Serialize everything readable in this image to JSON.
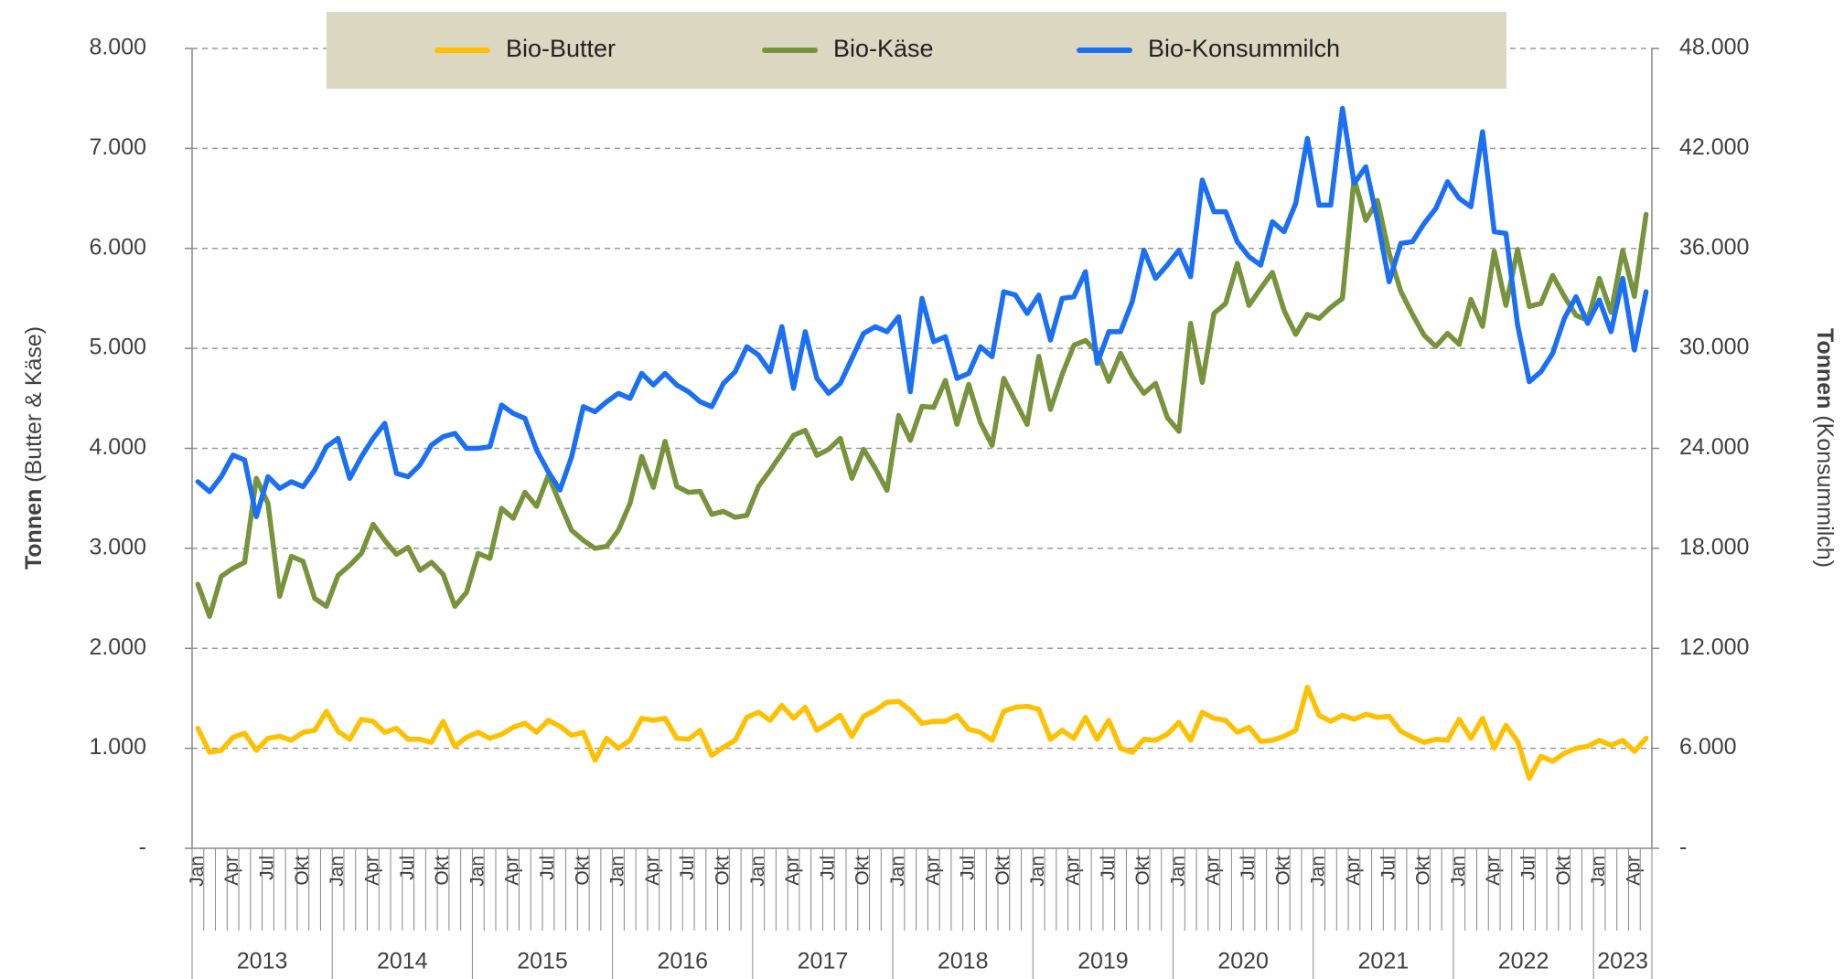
{
  "chart_data": {
    "type": "line",
    "y_label": {
      "bold": "Tonnen",
      "rest": "(Butter & Käse)"
    },
    "y2_label": {
      "bold": "Tonnen",
      "rest": "(Konsummilch)"
    },
    "categories": [
      "Jan",
      null,
      null,
      "Apr",
      null,
      null,
      "Jul",
      null,
      null,
      "Okt",
      null,
      null,
      "Jan",
      null,
      null,
      "Apr",
      null,
      null,
      "Jul",
      null,
      null,
      "Okt",
      null,
      null,
      "Jan",
      null,
      null,
      "Apr",
      null,
      null,
      "Jul",
      null,
      null,
      "Okt",
      null,
      null,
      "Jan",
      null,
      null,
      "Apr",
      null,
      null,
      "Jul",
      null,
      null,
      "Okt",
      null,
      null,
      "Jan",
      null,
      null,
      "Apr",
      null,
      null,
      "Jul",
      null,
      null,
      "Okt",
      null,
      null,
      "Jan",
      null,
      null,
      "Apr",
      null,
      null,
      "Jul",
      null,
      null,
      "Okt",
      null,
      null,
      "Jan",
      null,
      null,
      "Apr",
      null,
      null,
      "Jul",
      null,
      null,
      "Okt",
      null,
      null,
      "Jan",
      null,
      null,
      "Apr",
      null,
      null,
      "Jul",
      null,
      null,
      "Okt",
      null,
      null,
      "Jan",
      null,
      null,
      "Apr",
      null,
      null,
      "Jul",
      null,
      null,
      "Okt",
      null,
      null,
      "Jan",
      null,
      null,
      "Apr",
      null,
      null,
      "Jul",
      null,
      null,
      "Okt",
      null,
      null,
      "Jan",
      null,
      null,
      "Apr",
      null
    ],
    "years": [
      "2013",
      "2014",
      "2015",
      "2016",
      "2017",
      "2018",
      "2019",
      "2020",
      "2021",
      "2022",
      "2023"
    ],
    "series": [
      {
        "name": "Bio-Butter",
        "color": "#ffc000",
        "axis": "y",
        "values": [
          1200,
          960,
          980,
          1110,
          1150,
          980,
          1100,
          1120,
          1080,
          1160,
          1180,
          1370,
          1170,
          1090,
          1290,
          1270,
          1160,
          1200,
          1090,
          1090,
          1060,
          1270,
          1020,
          1110,
          1160,
          1100,
          1140,
          1210,
          1250,
          1160,
          1280,
          1220,
          1130,
          1160,
          880,
          1100,
          1000,
          1080,
          1300,
          1280,
          1300,
          1100,
          1090,
          1180,
          930,
          1010,
          1080,
          1310,
          1360,
          1280,
          1430,
          1300,
          1410,
          1180,
          1250,
          1330,
          1120,
          1320,
          1380,
          1460,
          1470,
          1380,
          1250,
          1270,
          1270,
          1330,
          1190,
          1160,
          1080,
          1370,
          1410,
          1420,
          1390,
          1090,
          1180,
          1100,
          1310,
          1090,
          1280,
          1000,
          960,
          1090,
          1080,
          1140,
          1260,
          1080,
          1360,
          1300,
          1280,
          1160,
          1210,
          1070,
          1080,
          1120,
          1180,
          1610,
          1330,
          1270,
          1330,
          1290,
          1340,
          1310,
          1320,
          1170,
          1110,
          1060,
          1090,
          1080,
          1290,
          1100,
          1300,
          1000,
          1230,
          1070,
          700,
          920,
          870,
          950,
          1000,
          1020,
          1080,
          1030,
          1080,
          970,
          1100
        ]
      },
      {
        "name": "Bio-Käse",
        "color": "#77933c",
        "axis": "y",
        "values": [
          2640,
          2320,
          2720,
          2800,
          2860,
          3700,
          3450,
          2520,
          2920,
          2870,
          2500,
          2420,
          2730,
          2830,
          2950,
          3240,
          3080,
          2940,
          3010,
          2780,
          2860,
          2740,
          2420,
          2560,
          2950,
          2900,
          3400,
          3300,
          3560,
          3420,
          3730,
          3450,
          3180,
          3080,
          3000,
          3020,
          3180,
          3450,
          3920,
          3610,
          4070,
          3620,
          3560,
          3570,
          3340,
          3370,
          3310,
          3330,
          3620,
          3780,
          3950,
          4130,
          4180,
          3930,
          3990,
          4100,
          3700,
          3990,
          3800,
          3580,
          4330,
          4080,
          4420,
          4410,
          4680,
          4240,
          4640,
          4260,
          4030,
          4700,
          4470,
          4240,
          4920,
          4390,
          4740,
          5030,
          5080,
          4960,
          4670,
          4950,
          4720,
          4550,
          4650,
          4310,
          4170,
          5250,
          4660,
          5350,
          5450,
          5850,
          5430,
          5600,
          5760,
          5380,
          5140,
          5340,
          5300,
          5410,
          5500,
          6700,
          6280,
          6480,
          5950,
          5570,
          5340,
          5130,
          5020,
          5150,
          5040,
          5490,
          5220,
          5970,
          5430,
          5990,
          5420,
          5450,
          5730,
          5520,
          5330,
          5280,
          5700,
          5360,
          5980,
          5520,
          6340
        ]
      },
      {
        "name": "Bio-Konsummilch",
        "color": "#1a6ff5",
        "axis": "y2",
        "values": [
          22000,
          21400,
          22300,
          23600,
          23300,
          19900,
          22300,
          21600,
          22000,
          21700,
          22700,
          24100,
          24600,
          22200,
          23500,
          24600,
          25500,
          22500,
          22300,
          23000,
          24200,
          24700,
          24900,
          24000,
          24000,
          24100,
          26600,
          26100,
          25800,
          23900,
          22600,
          21500,
          23500,
          26500,
          26200,
          26800,
          27300,
          27000,
          28500,
          27800,
          28500,
          27800,
          27400,
          26800,
          26500,
          27900,
          28600,
          30100,
          29600,
          28600,
          31300,
          27600,
          31000,
          28200,
          27300,
          27900,
          29400,
          30900,
          31300,
          31000,
          31900,
          27400,
          33000,
          30400,
          30700,
          28200,
          28500,
          30100,
          29500,
          33400,
          33200,
          32100,
          33200,
          30500,
          33000,
          33100,
          34600,
          29100,
          31000,
          31000,
          32800,
          35900,
          34200,
          35000,
          35900,
          34300,
          40100,
          38200,
          38200,
          36400,
          35500,
          35000,
          37600,
          37000,
          38700,
          42600,
          38600,
          38600,
          44400,
          39900,
          40900,
          37700,
          34000,
          36300,
          36400,
          37500,
          38400,
          40000,
          39000,
          38500,
          43000,
          37000,
          36900,
          31400,
          28000,
          28600,
          29700,
          31800,
          33100,
          31500,
          32900,
          31000,
          34200,
          29900,
          33400
        ]
      }
    ],
    "ylim": [
      0,
      8000
    ],
    "yticks": [
      {
        "value": 0,
        "label": "-"
      },
      {
        "value": 1000,
        "label": "1.000"
      },
      {
        "value": 2000,
        "label": "2.000"
      },
      {
        "value": 3000,
        "label": "3.000"
      },
      {
        "value": 4000,
        "label": "4.000"
      },
      {
        "value": 5000,
        "label": "5.000"
      },
      {
        "value": 6000,
        "label": "6.000"
      },
      {
        "value": 7000,
        "label": "7.000"
      },
      {
        "value": 8000,
        "label": "8.000"
      }
    ],
    "y2lim": [
      0,
      48000
    ],
    "y2ticks": [
      {
        "value": 0,
        "label": "-"
      },
      {
        "value": 6000,
        "label": "6.000"
      },
      {
        "value": 12000,
        "label": "12.000"
      },
      {
        "value": 18000,
        "label": "18.000"
      },
      {
        "value": 24000,
        "label": "24.000"
      },
      {
        "value": 30000,
        "label": "30.000"
      },
      {
        "value": 36000,
        "label": "36.000"
      },
      {
        "value": 42000,
        "label": "42.000"
      },
      {
        "value": 48000,
        "label": "48.000"
      }
    ],
    "grid": true,
    "legend": "top"
  }
}
